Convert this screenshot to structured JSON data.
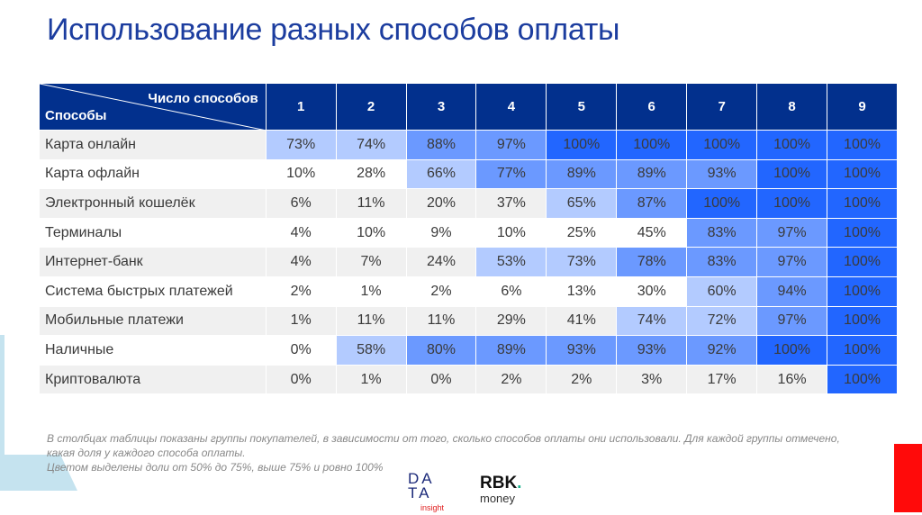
{
  "title": "Использование разных способов оплаты",
  "table": {
    "header_top": "Число способов",
    "header_left": "Способы",
    "columns": [
      "1",
      "2",
      "3",
      "4",
      "5",
      "6",
      "7",
      "8",
      "9"
    ],
    "rows": [
      {
        "label": "Карта онлайн",
        "values": [
          73,
          74,
          88,
          97,
          100,
          100,
          100,
          100,
          100
        ]
      },
      {
        "label": "Карта офлайн",
        "values": [
          10,
          28,
          66,
          77,
          89,
          89,
          93,
          100,
          100
        ]
      },
      {
        "label": "Электронный кошелёк",
        "values": [
          6,
          11,
          20,
          37,
          65,
          87,
          100,
          100,
          100
        ]
      },
      {
        "label": "Терминалы",
        "values": [
          4,
          10,
          9,
          10,
          25,
          45,
          83,
          97,
          100
        ]
      },
      {
        "label": "Интернет-банк",
        "values": [
          4,
          7,
          24,
          53,
          73,
          78,
          83,
          97,
          100
        ]
      },
      {
        "label": "Система быстрых платежей",
        "values": [
          2,
          1,
          2,
          6,
          13,
          30,
          60,
          94,
          100
        ]
      },
      {
        "label": "Мобильные платежи",
        "values": [
          1,
          11,
          11,
          29,
          41,
          74,
          72,
          97,
          100
        ]
      },
      {
        "label": "Наличные",
        "values": [
          0,
          58,
          80,
          89,
          93,
          93,
          92,
          100,
          100
        ]
      },
      {
        "label": "Криптовалюта",
        "values": [
          0,
          1,
          0,
          2,
          2,
          3,
          17,
          16,
          100
        ]
      }
    ]
  },
  "colors": {
    "header": "#02308d",
    "band_50_75": "#b3cbff",
    "band_above_75": "#6b99ff",
    "band_100": "#2266ff"
  },
  "note": {
    "line1": "В столбцах таблицы показаны группы покупателей, в зависимости от того, сколько способов оплаты они использовали. Для каждой группы отмечено, какая доля у каждого способа оплаты.",
    "line2": "Цветом выделены доли от 50% до 75%, выше 75% и ровно 100%"
  },
  "logos": {
    "data_insight": "DATA insight",
    "rbk": "RBK.",
    "rbk_sub": "money"
  }
}
